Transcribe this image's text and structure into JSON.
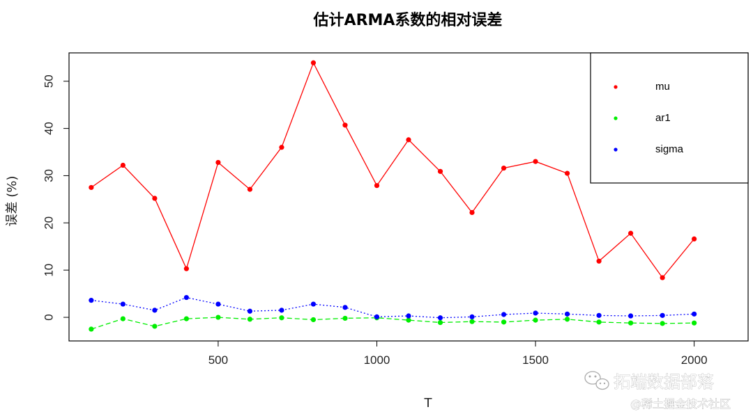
{
  "chart_data": {
    "type": "line",
    "title": "估计ARMA系数的相对误差",
    "xlabel": "T",
    "ylabel": "误差 (%)",
    "x": [
      100,
      200,
      300,
      400,
      500,
      600,
      700,
      800,
      900,
      1000,
      1100,
      1200,
      1300,
      1400,
      1500,
      1600,
      1700,
      1800,
      1900,
      2000
    ],
    "xlim": [
      30,
      2170
    ],
    "ylim": [
      -5,
      56
    ],
    "xticks": [
      500,
      1000,
      1500,
      2000
    ],
    "yticks": [
      0,
      10,
      20,
      30,
      40,
      50
    ],
    "series": [
      {
        "name": "mu",
        "color": "#ff0000",
        "line": "solid",
        "values": [
          27.5,
          32.2,
          25.2,
          10.3,
          32.8,
          27.1,
          36.0,
          53.9,
          40.7,
          27.9,
          37.6,
          30.9,
          22.2,
          31.6,
          33.0,
          30.5,
          11.9,
          17.8,
          8.4,
          16.6
        ]
      },
      {
        "name": "ar1",
        "color": "#00ee00",
        "line": "dashed",
        "values": [
          -2.5,
          -0.3,
          -1.9,
          -0.3,
          0.0,
          -0.4,
          -0.1,
          -0.5,
          -0.2,
          -0.1,
          -0.6,
          -1.1,
          -0.9,
          -1.0,
          -0.6,
          -0.4,
          -1.0,
          -1.2,
          -1.3,
          -1.2
        ]
      },
      {
        "name": "sigma",
        "color": "#0000ff",
        "line": "dotted",
        "values": [
          3.6,
          2.8,
          1.5,
          4.2,
          2.8,
          1.3,
          1.5,
          2.8,
          2.1,
          0.1,
          0.3,
          -0.1,
          0.1,
          0.6,
          0.9,
          0.7,
          0.4,
          0.3,
          0.4,
          0.7
        ]
      }
    ],
    "legend": {
      "position": "top-right",
      "entries": [
        "mu",
        "ar1",
        "sigma"
      ]
    },
    "grid": false
  },
  "watermarks": {
    "primary": "拓端数据部落",
    "secondary": "@稀土掘金技术社区",
    "icon": "wechat-icon"
  }
}
